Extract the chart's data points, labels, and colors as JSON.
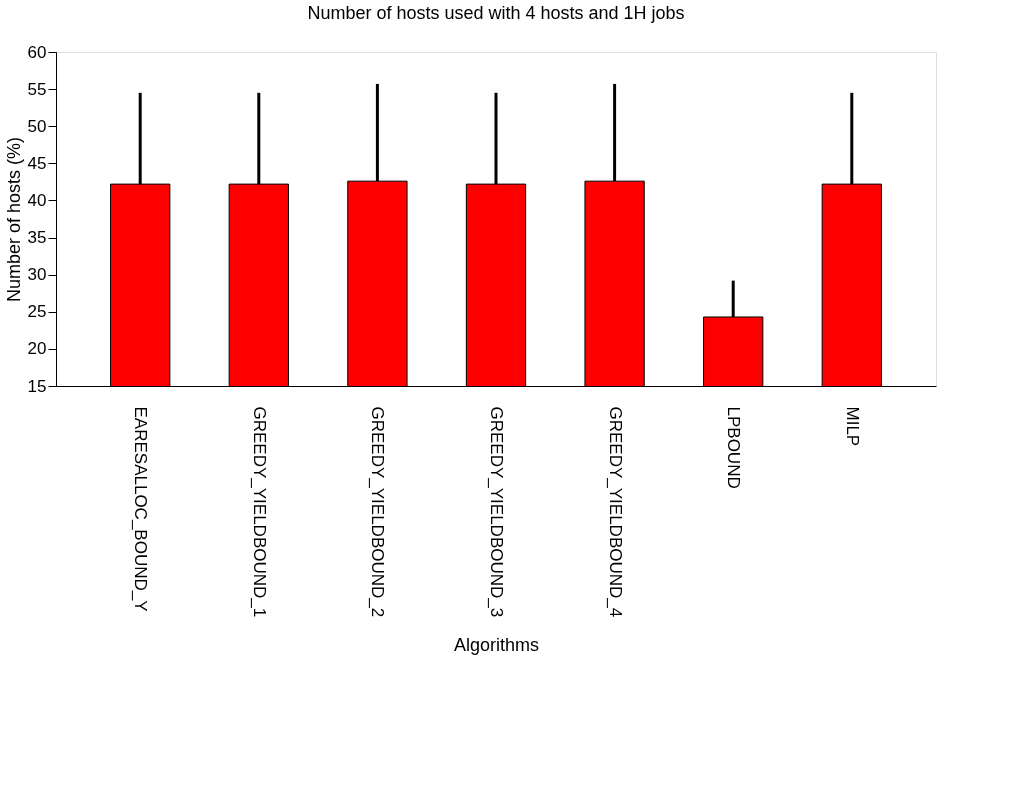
{
  "chart_data": {
    "type": "bar",
    "title": "Number of hosts used with 4 hosts and 1H jobs",
    "xlabel": "Algorithms",
    "ylabel": "Number of hosts (%)",
    "categories": [
      "EARESALLOC_BOUND_Y",
      "GREEDY_YIELDBOUND_1",
      "GREEDY_YIELDBOUND_2",
      "GREEDY_YIELDBOUND_3",
      "GREEDY_YIELDBOUND_4",
      "LPBOUND",
      "MILP"
    ],
    "values": [
      42.2,
      42.2,
      42.6,
      42.2,
      42.6,
      24.3,
      42.2
    ],
    "errors": [
      [
        42.2,
        54.5
      ],
      [
        42.2,
        54.5
      ],
      [
        42.6,
        55.7
      ],
      [
        42.2,
        54.5
      ],
      [
        42.6,
        55.7
      ],
      [
        24.3,
        29.2
      ],
      [
        42.2,
        54.5
      ]
    ],
    "color": "#ff0000",
    "ylim": [
      15,
      60
    ],
    "yticks": [
      15,
      20,
      25,
      30,
      35,
      40,
      45,
      50,
      55,
      60
    ],
    "grid": false
  }
}
